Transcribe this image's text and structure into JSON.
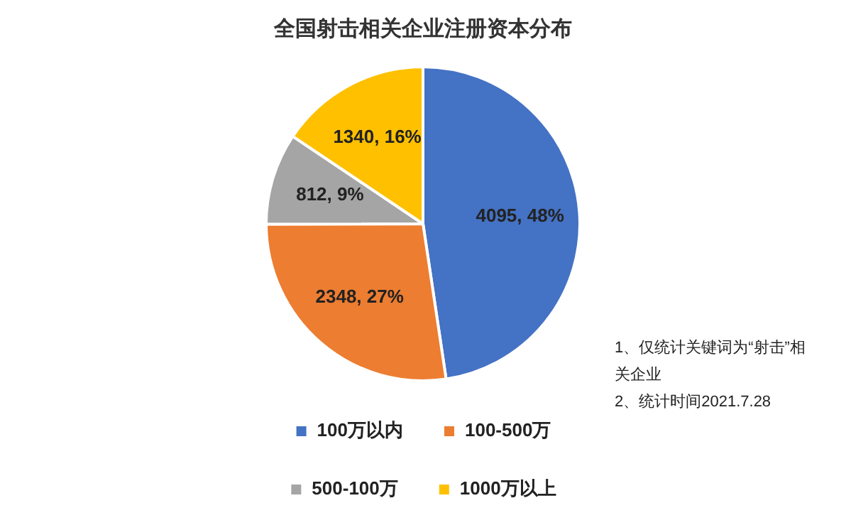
{
  "chart_data": {
    "type": "pie",
    "title": "全国射击相关企业注册资本分布",
    "categories": [
      "100万以内",
      "100-500万",
      "500-100万",
      "1000万以上"
    ],
    "values": [
      4095,
      2348,
      812,
      1340
    ],
    "value_labels": [
      "4095, 48%",
      "2348, 27%",
      "812, 9%",
      "1340, 16%"
    ],
    "colors": [
      "#4472c4",
      "#ed7d31",
      "#a5a5a5",
      "#ffc000"
    ],
    "legend": "bottom",
    "annotations": [
      "1、仅统计关键词为“射击”相关企业",
      "2、统计时间2021.7.28"
    ]
  }
}
